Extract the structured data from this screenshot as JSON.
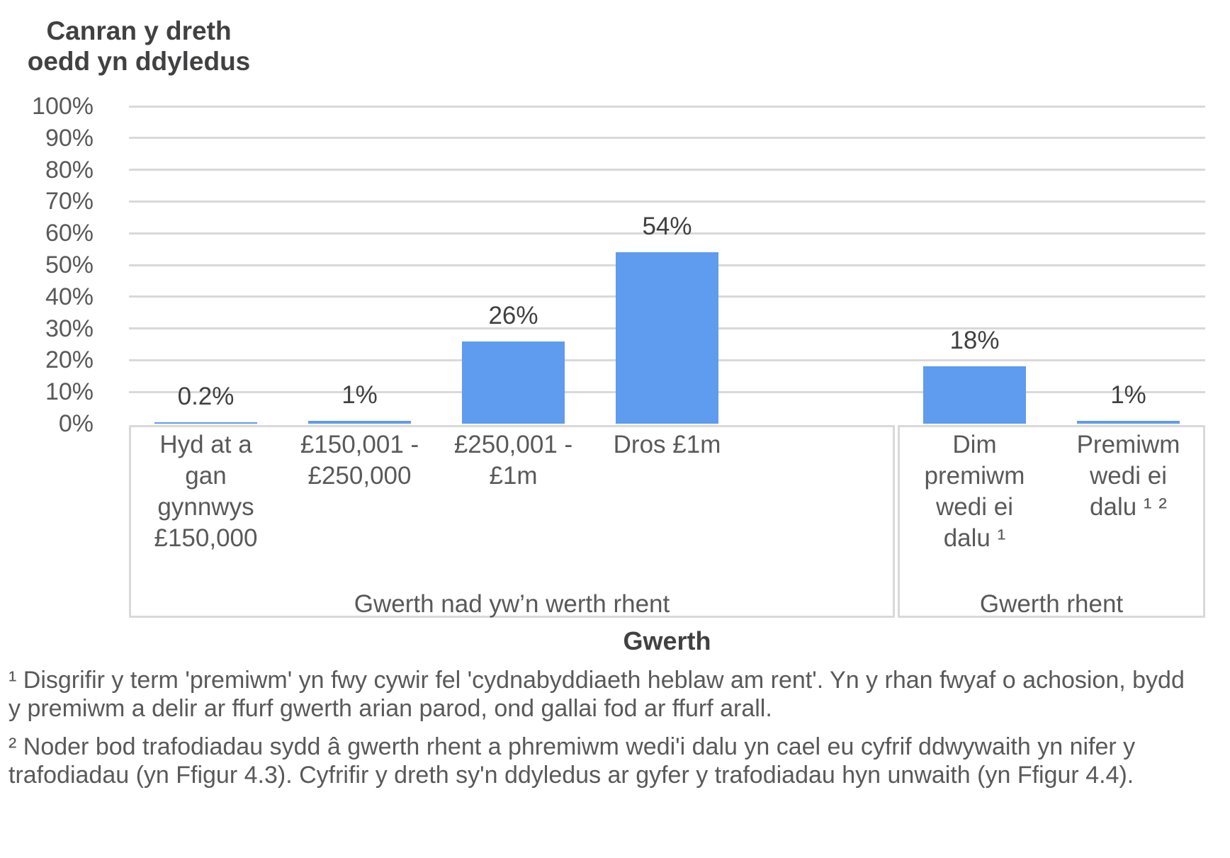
{
  "chart_data": {
    "type": "bar",
    "title": "Canran y dreth oedd yn ddyledus",
    "title_lines": {
      "line1": "Canran y dreth",
      "line2": "oedd yn ddyledus"
    },
    "xlabel": "Gwerth",
    "ylabel": "Canran y dreth oedd yn ddyledus",
    "ylim": [
      0,
      100
    ],
    "y_ticks": [
      "0%",
      "10%",
      "20%",
      "30%",
      "40%",
      "50%",
      "60%",
      "70%",
      "80%",
      "90%",
      "100%"
    ],
    "grid": true,
    "legend": false,
    "bar_color": "#5F9BEE",
    "categories": [
      "Hyd at a gan gynnwys £150,000",
      "£150,001 - £250,000",
      "£250,001 - £1m",
      "Dros £1m",
      "Dim premiwm wedi ei dalu ¹",
      "Premiwm wedi ei dalu ¹ ²"
    ],
    "category_lines": [
      [
        "Hyd at a",
        "gan",
        "gynnwys",
        "£150,000"
      ],
      [
        "£150,001 -",
        "£250,000"
      ],
      [
        "£250,001 -",
        "£1m"
      ],
      [
        "Dros £1m"
      ],
      [
        "Dim",
        "premiwm",
        "wedi ei",
        "dalu ¹"
      ],
      [
        "Premiwm",
        "wedi ei",
        "dalu ¹ ²"
      ]
    ],
    "values": [
      0.2,
      1,
      26,
      54,
      18,
      1
    ],
    "value_labels": [
      "0.2%",
      "1%",
      "26%",
      "54%",
      "18%",
      "1%"
    ],
    "slot_of_category": [
      0,
      1,
      2,
      3,
      5,
      6
    ],
    "slot_count": 7,
    "groups": [
      {
        "label": "Gwerth nad yw’n werth rhent",
        "categories": [
          "Hyd at a gan gynnwys £150,000",
          "£150,001 - £250,000",
          "£250,001 - £1m",
          "Dros £1m"
        ]
      },
      {
        "label": "Gwerth rhent",
        "categories": [
          "Dim premiwm wedi ei dalu ¹",
          "Premiwm wedi ei dalu ¹ ²"
        ]
      }
    ]
  },
  "footnotes": [
    "¹ Disgrifir y term 'premiwm' yn fwy cywir fel 'cydnabyddiaeth heblaw am rent'. Yn y rhan fwyaf o achosion, bydd y premiwm a delir ar ffurf gwerth arian parod, ond gallai fod ar ffurf arall.",
    "² Noder bod trafodiadau sydd â gwerth rhent a phremiwm wedi'i dalu yn cael eu cyfrif ddwywaith yn nifer y trafodiadau (yn Ffigur 4.3). Cyfrifir y dreth sy'n ddyledus ar gyfer y trafodiadau hyn unwaith (yn Ffigur 4.4)."
  ],
  "colors": {
    "bar": "#5F9BEE",
    "gridline": "#D9D9D9",
    "axis_text": "#595959",
    "label_text": "#404040"
  }
}
